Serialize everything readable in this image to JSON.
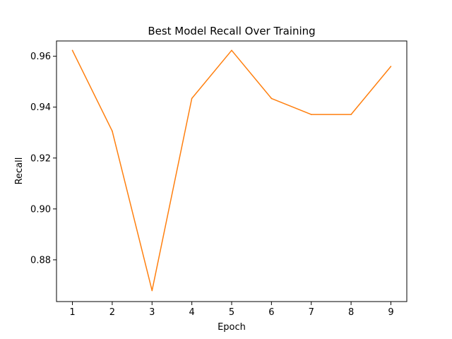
{
  "chart_data": {
    "type": "line",
    "title": "Best Model Recall Over Training",
    "xlabel": "Epoch",
    "ylabel": "Recall",
    "x": [
      1,
      2,
      3,
      4,
      5,
      6,
      7,
      8,
      9
    ],
    "xticks": [
      "1",
      "2",
      "3",
      "4",
      "5",
      "6",
      "7",
      "8",
      "9"
    ],
    "yticks": [
      "0.88",
      "0.90",
      "0.92",
      "0.94",
      "0.96"
    ],
    "xlim": [
      0.6,
      9.4
    ],
    "ylim": [
      0.8636,
      0.966
    ],
    "grid": false,
    "series": [
      {
        "color": "#ff7f0e",
        "values": [
          0.9623,
          0.9306,
          0.8679,
          0.9434,
          0.9623,
          0.9434,
          0.9371,
          0.9371,
          0.956
        ]
      }
    ]
  }
}
